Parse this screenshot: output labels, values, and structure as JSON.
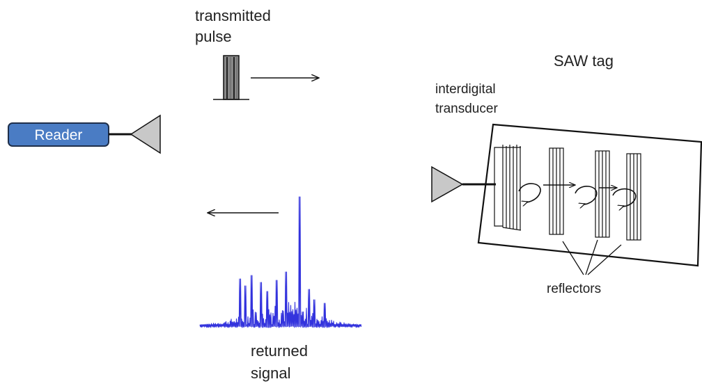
{
  "labels": {
    "transmitted_line1": "transmitted",
    "transmitted_line2": "pulse",
    "saw_tag": "SAW tag",
    "idt_line1": "interdigital",
    "idt_line2": "transducer",
    "reader": "Reader",
    "reflectors": "reflectors",
    "returned_line1": "returned",
    "returned_line2": "signal"
  },
  "colors": {
    "reader_fill": "#4a7cc4",
    "reader_stroke": "#1f2f4a",
    "antenna_fill": "#c8c8c8",
    "signal": "#3333dd",
    "pulse_dark": "#444444",
    "pulse_light": "#888888"
  },
  "icons": {
    "reader_antenna": "triangle-antenna-icon",
    "tag_antenna": "triangle-antenna-icon",
    "wave_reflection": "curved-arrow-icon"
  }
}
